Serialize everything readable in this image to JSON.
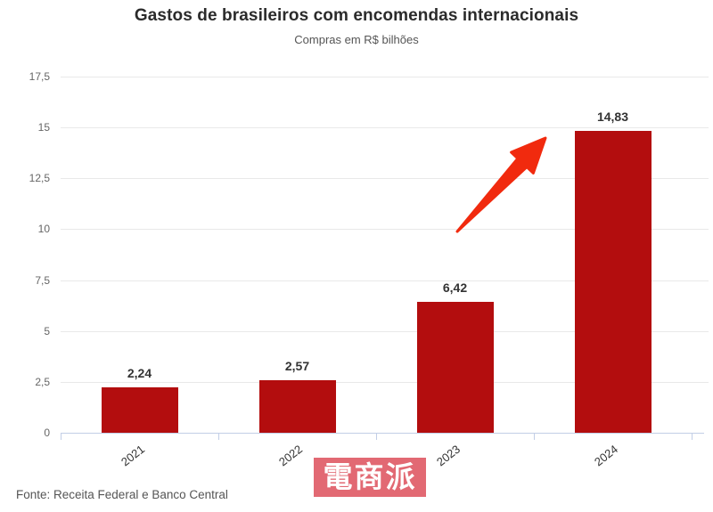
{
  "header": {
    "title": "Gastos de brasileiros com encomendas internacionais",
    "subtitle": "Compras em R$ bilhões"
  },
  "footer": {
    "source": "Fonte: Receita Federal e Banco Central"
  },
  "watermark": {
    "text": "電商派"
  },
  "colors": {
    "bar": "#b30d0e",
    "arrow": "#f12a0e",
    "gridline": "#e9e9e9",
    "axis": "#c2cee6",
    "title": "#2b2b2b",
    "subtitle": "#555555",
    "tick_label": "#666666",
    "value_label": "#333333",
    "watermark_bg": "#de5460"
  },
  "chart_data": {
    "type": "bar",
    "title": "Gastos de brasileiros com encomendas internacionais",
    "subtitle": "Compras em R$ bilhões",
    "categories": [
      "2021",
      "2022",
      "2023",
      "2024"
    ],
    "values": [
      2.24,
      2.57,
      6.42,
      14.83
    ],
    "value_labels": [
      "2,24",
      "2,57",
      "6,42",
      "14,83"
    ],
    "ylabel": "",
    "xlabel": "",
    "ylim": [
      0,
      17.5
    ],
    "ytick_step": 2.5,
    "ytick_labels": [
      "0",
      "2,5",
      "5",
      "7,5",
      "10",
      "12,5",
      "15",
      "17,5"
    ],
    "grid": "horizontal",
    "legend": "none",
    "bar_color": "#b30d0e",
    "annotation": {
      "type": "arrow",
      "color": "#f12a0e",
      "direction": "up-right",
      "points_to": "2024"
    },
    "source": "Fonte: Receita Federal e Banco Central"
  }
}
